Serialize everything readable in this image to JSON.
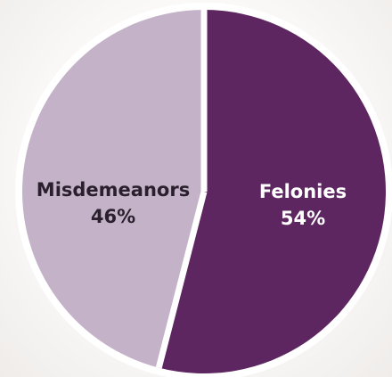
{
  "chart_data": {
    "type": "pie",
    "title": "",
    "slices": [
      {
        "label": "Felonies",
        "value_label": "54%",
        "value": 54,
        "color": "#5e2660",
        "text_color": "#ffffff"
      },
      {
        "label": "Misdemeanors",
        "value_label": "46%",
        "value": 46,
        "color": "#c4b2c8",
        "text_color": "#2a1f2c"
      }
    ],
    "start_angle_deg": 0,
    "direction": "clockwise",
    "ring_color": "#ffffff",
    "separator_color": "#ffffff",
    "legend": "none"
  }
}
